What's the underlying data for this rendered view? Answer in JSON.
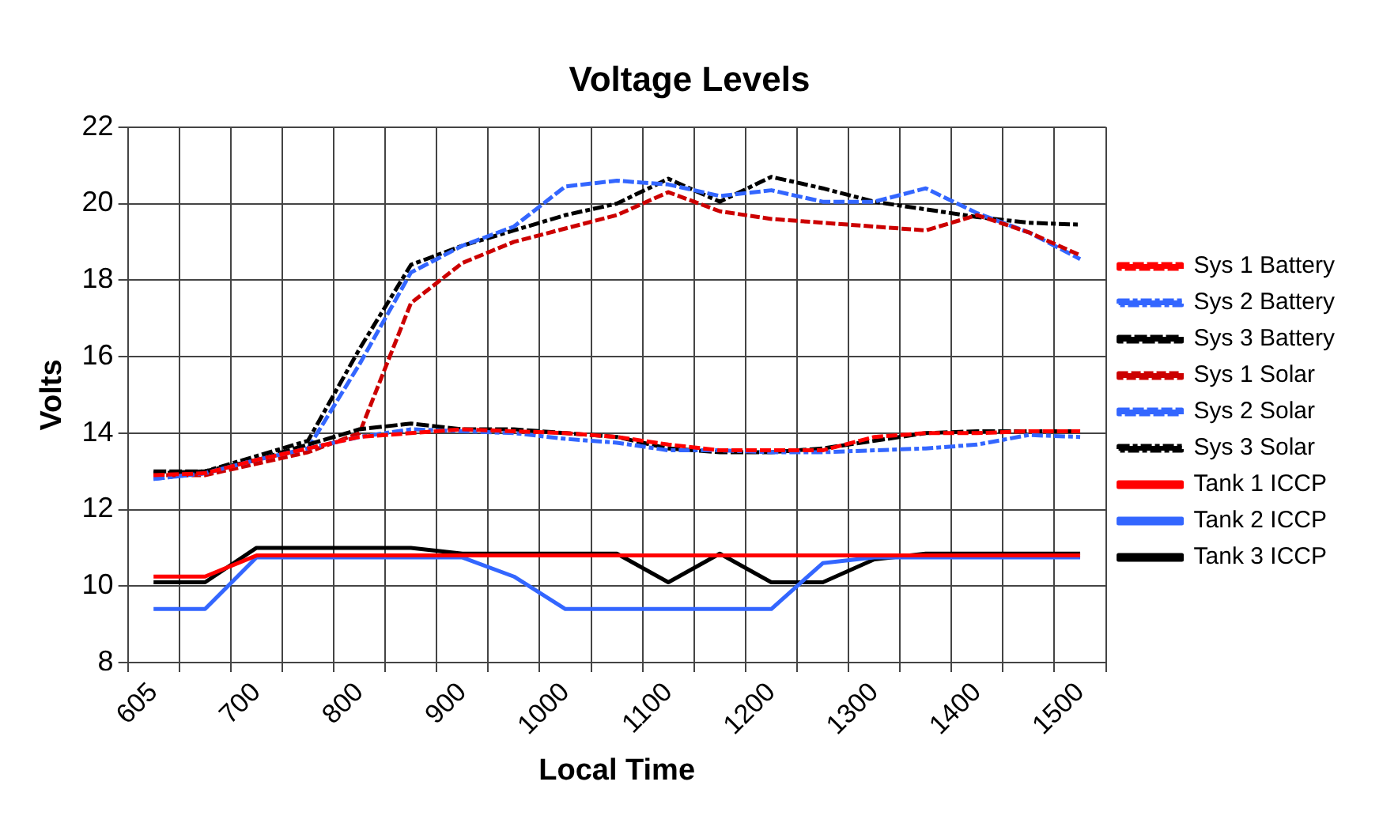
{
  "chart_data": {
    "type": "line",
    "title": "Voltage Levels",
    "xlabel": "Local Time",
    "ylabel": "Volts",
    "categories": [
      "605",
      null,
      "700",
      null,
      "800",
      null,
      "900",
      null,
      "1000",
      null,
      "1100",
      null,
      "1200",
      null,
      "1300",
      null,
      "1400",
      null,
      "1500"
    ],
    "ylim": [
      8,
      22
    ],
    "yticks": [
      8,
      10,
      12,
      14,
      16,
      18,
      20,
      22
    ],
    "grid": true,
    "legend": "right",
    "marker": "none",
    "series": [
      {
        "name": "Sys 1 Battery",
        "color": "#ff0000",
        "line_style": "dashed",
        "values": [
          12.9,
          12.95,
          13.3,
          13.6,
          13.9,
          14.0,
          14.1,
          14.05,
          14.0,
          13.9,
          13.7,
          13.55,
          13.55,
          13.55,
          13.9,
          14.0,
          14.0,
          14.05,
          14.05
        ]
      },
      {
        "name": "Sys 2 Battery",
        "color": "#3366ff",
        "line_style": "dashed",
        "values": [
          12.8,
          12.95,
          13.3,
          13.6,
          13.9,
          14.1,
          14.05,
          14.0,
          13.85,
          13.75,
          13.55,
          13.55,
          13.5,
          13.5,
          13.55,
          13.6,
          13.7,
          13.95,
          13.9
        ]
      },
      {
        "name": "Sys 3 Battery",
        "color": "#000000",
        "line_style": "dashed",
        "values": [
          13.0,
          13.0,
          13.3,
          13.7,
          14.1,
          14.25,
          14.1,
          14.1,
          14.0,
          13.9,
          13.6,
          13.5,
          13.5,
          13.6,
          13.8,
          14.0,
          14.05,
          14.05,
          14.05
        ]
      },
      {
        "name": "Sys 1 Solar",
        "color": "#cc0000",
        "line_style": "dashed",
        "values": [
          12.9,
          12.9,
          13.2,
          13.5,
          14.0,
          17.4,
          18.45,
          19.0,
          19.35,
          19.7,
          20.3,
          19.8,
          19.6,
          19.5,
          19.4,
          19.3,
          19.7,
          19.25,
          18.65
        ]
      },
      {
        "name": "Sys 2 Solar",
        "color": "#3366ff",
        "line_style": "dashed",
        "values": [
          12.8,
          12.95,
          13.3,
          13.6,
          15.8,
          18.2,
          18.9,
          19.4,
          20.45,
          20.6,
          20.5,
          20.2,
          20.35,
          20.05,
          20.05,
          20.4,
          19.75,
          19.25,
          18.55
        ]
      },
      {
        "name": "Sys 3 Solar",
        "color": "#000000",
        "line_style": "dashed",
        "values": [
          12.95,
          13.0,
          13.4,
          13.8,
          16.2,
          18.4,
          18.9,
          19.3,
          19.7,
          20.0,
          20.65,
          20.05,
          20.7,
          20.4,
          20.05,
          19.85,
          19.65,
          19.5,
          19.45
        ]
      },
      {
        "name": "Tank 1 ICCP",
        "color": "#ff0000",
        "line_style": "solid",
        "values": [
          10.25,
          10.25,
          10.8,
          10.8,
          10.8,
          10.8,
          10.8,
          10.8,
          10.8,
          10.8,
          10.8,
          10.8,
          10.8,
          10.8,
          10.8,
          10.8,
          10.8,
          10.8,
          10.8
        ]
      },
      {
        "name": "Tank 2 ICCP",
        "color": "#3366ff",
        "line_style": "solid",
        "values": [
          9.4,
          9.4,
          10.75,
          10.75,
          10.75,
          10.75,
          10.75,
          10.25,
          9.4,
          9.4,
          9.4,
          9.4,
          9.4,
          10.6,
          10.75,
          10.75,
          10.75,
          10.75,
          10.75
        ]
      },
      {
        "name": "Tank 3 ICCP",
        "color": "#000000",
        "line_style": "solid",
        "values": [
          10.1,
          10.1,
          11.0,
          11.0,
          11.0,
          11.0,
          10.85,
          10.85,
          10.85,
          10.85,
          10.1,
          10.85,
          10.1,
          10.1,
          10.7,
          10.85,
          10.85,
          10.85,
          10.85
        ]
      }
    ]
  }
}
